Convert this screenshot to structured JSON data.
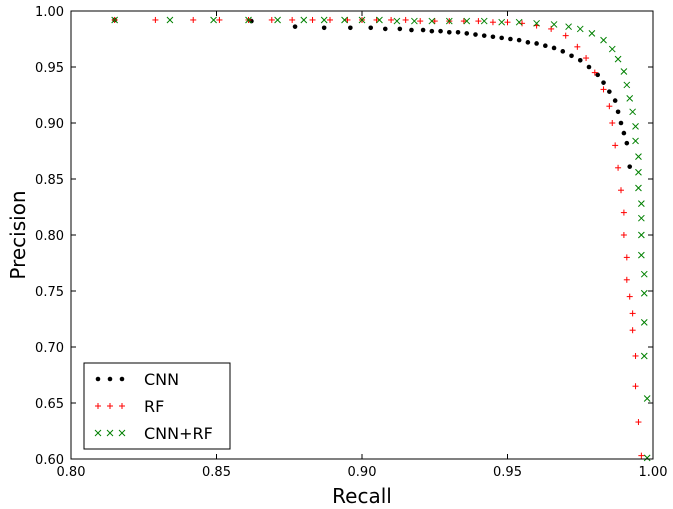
{
  "chart_data": {
    "type": "scatter",
    "title": "",
    "xlabel": "Recall",
    "ylabel": "Precision",
    "xlim": [
      0.8,
      1.0
    ],
    "ylim": [
      0.6,
      1.0
    ],
    "x_ticks": [
      "0.80",
      "0.85",
      "0.90",
      "0.95",
      "1.00"
    ],
    "y_ticks": [
      "0.60",
      "0.65",
      "0.70",
      "0.75",
      "0.80",
      "0.85",
      "0.90",
      "0.95",
      "1.00"
    ],
    "grid": false,
    "legend_position": "bottom-left",
    "series": [
      {
        "name": "CNN",
        "color": "#000000",
        "marker": "dot",
        "points": [
          [
            0.815,
            0.992
          ],
          [
            0.862,
            0.991
          ],
          [
            0.877,
            0.986
          ],
          [
            0.887,
            0.985
          ],
          [
            0.896,
            0.985
          ],
          [
            0.903,
            0.985
          ],
          [
            0.908,
            0.984
          ],
          [
            0.913,
            0.984
          ],
          [
            0.917,
            0.983
          ],
          [
            0.921,
            0.983
          ],
          [
            0.924,
            0.982
          ],
          [
            0.927,
            0.982
          ],
          [
            0.93,
            0.981
          ],
          [
            0.933,
            0.981
          ],
          [
            0.936,
            0.98
          ],
          [
            0.939,
            0.979
          ],
          [
            0.942,
            0.978
          ],
          [
            0.945,
            0.977
          ],
          [
            0.948,
            0.976
          ],
          [
            0.951,
            0.975
          ],
          [
            0.954,
            0.974
          ],
          [
            0.957,
            0.972
          ],
          [
            0.96,
            0.971
          ],
          [
            0.963,
            0.969
          ],
          [
            0.966,
            0.967
          ],
          [
            0.969,
            0.964
          ],
          [
            0.972,
            0.96
          ],
          [
            0.975,
            0.956
          ],
          [
            0.978,
            0.95
          ],
          [
            0.981,
            0.943
          ],
          [
            0.983,
            0.936
          ],
          [
            0.985,
            0.928
          ],
          [
            0.987,
            0.92
          ],
          [
            0.988,
            0.91
          ],
          [
            0.989,
            0.9
          ],
          [
            0.99,
            0.891
          ],
          [
            0.991,
            0.882
          ],
          [
            0.992,
            0.861
          ]
        ]
      },
      {
        "name": "RF",
        "color": "#ff0000",
        "marker": "plus",
        "points": [
          [
            0.815,
            0.992
          ],
          [
            0.829,
            0.992
          ],
          [
            0.842,
            0.992
          ],
          [
            0.851,
            0.992
          ],
          [
            0.861,
            0.992
          ],
          [
            0.869,
            0.992
          ],
          [
            0.876,
            0.992
          ],
          [
            0.883,
            0.992
          ],
          [
            0.889,
            0.992
          ],
          [
            0.895,
            0.992
          ],
          [
            0.9,
            0.992
          ],
          [
            0.905,
            0.992
          ],
          [
            0.91,
            0.992
          ],
          [
            0.915,
            0.992
          ],
          [
            0.92,
            0.991
          ],
          [
            0.925,
            0.991
          ],
          [
            0.93,
            0.991
          ],
          [
            0.935,
            0.991
          ],
          [
            0.94,
            0.991
          ],
          [
            0.945,
            0.99
          ],
          [
            0.95,
            0.99
          ],
          [
            0.955,
            0.989
          ],
          [
            0.96,
            0.987
          ],
          [
            0.965,
            0.984
          ],
          [
            0.97,
            0.978
          ],
          [
            0.974,
            0.968
          ],
          [
            0.977,
            0.958
          ],
          [
            0.98,
            0.945
          ],
          [
            0.983,
            0.93
          ],
          [
            0.985,
            0.915
          ],
          [
            0.986,
            0.9
          ],
          [
            0.987,
            0.88
          ],
          [
            0.988,
            0.86
          ],
          [
            0.989,
            0.84
          ],
          [
            0.99,
            0.82
          ],
          [
            0.99,
            0.8
          ],
          [
            0.991,
            0.78
          ],
          [
            0.991,
            0.76
          ],
          [
            0.992,
            0.745
          ],
          [
            0.993,
            0.73
          ],
          [
            0.993,
            0.715
          ],
          [
            0.994,
            0.692
          ],
          [
            0.994,
            0.665
          ],
          [
            0.995,
            0.633
          ],
          [
            0.996,
            0.603
          ]
        ]
      },
      {
        "name": "CNN+RF",
        "color": "#008000",
        "marker": "x",
        "points": [
          [
            0.815,
            0.992
          ],
          [
            0.834,
            0.992
          ],
          [
            0.849,
            0.992
          ],
          [
            0.861,
            0.992
          ],
          [
            0.871,
            0.992
          ],
          [
            0.88,
            0.992
          ],
          [
            0.887,
            0.992
          ],
          [
            0.894,
            0.992
          ],
          [
            0.9,
            0.992
          ],
          [
            0.906,
            0.992
          ],
          [
            0.912,
            0.991
          ],
          [
            0.918,
            0.991
          ],
          [
            0.924,
            0.991
          ],
          [
            0.93,
            0.991
          ],
          [
            0.936,
            0.991
          ],
          [
            0.942,
            0.991
          ],
          [
            0.948,
            0.99
          ],
          [
            0.954,
            0.99
          ],
          [
            0.96,
            0.989
          ],
          [
            0.966,
            0.988
          ],
          [
            0.971,
            0.986
          ],
          [
            0.975,
            0.984
          ],
          [
            0.979,
            0.98
          ],
          [
            0.983,
            0.974
          ],
          [
            0.986,
            0.966
          ],
          [
            0.988,
            0.957
          ],
          [
            0.99,
            0.946
          ],
          [
            0.991,
            0.934
          ],
          [
            0.992,
            0.922
          ],
          [
            0.993,
            0.91
          ],
          [
            0.994,
            0.897
          ],
          [
            0.994,
            0.884
          ],
          [
            0.995,
            0.87
          ],
          [
            0.995,
            0.856
          ],
          [
            0.995,
            0.842
          ],
          [
            0.996,
            0.828
          ],
          [
            0.996,
            0.815
          ],
          [
            0.996,
            0.8
          ],
          [
            0.996,
            0.782
          ],
          [
            0.997,
            0.765
          ],
          [
            0.997,
            0.748
          ],
          [
            0.997,
            0.722
          ],
          [
            0.997,
            0.692
          ],
          [
            0.998,
            0.654
          ],
          [
            0.998,
            0.601
          ]
        ]
      }
    ]
  }
}
